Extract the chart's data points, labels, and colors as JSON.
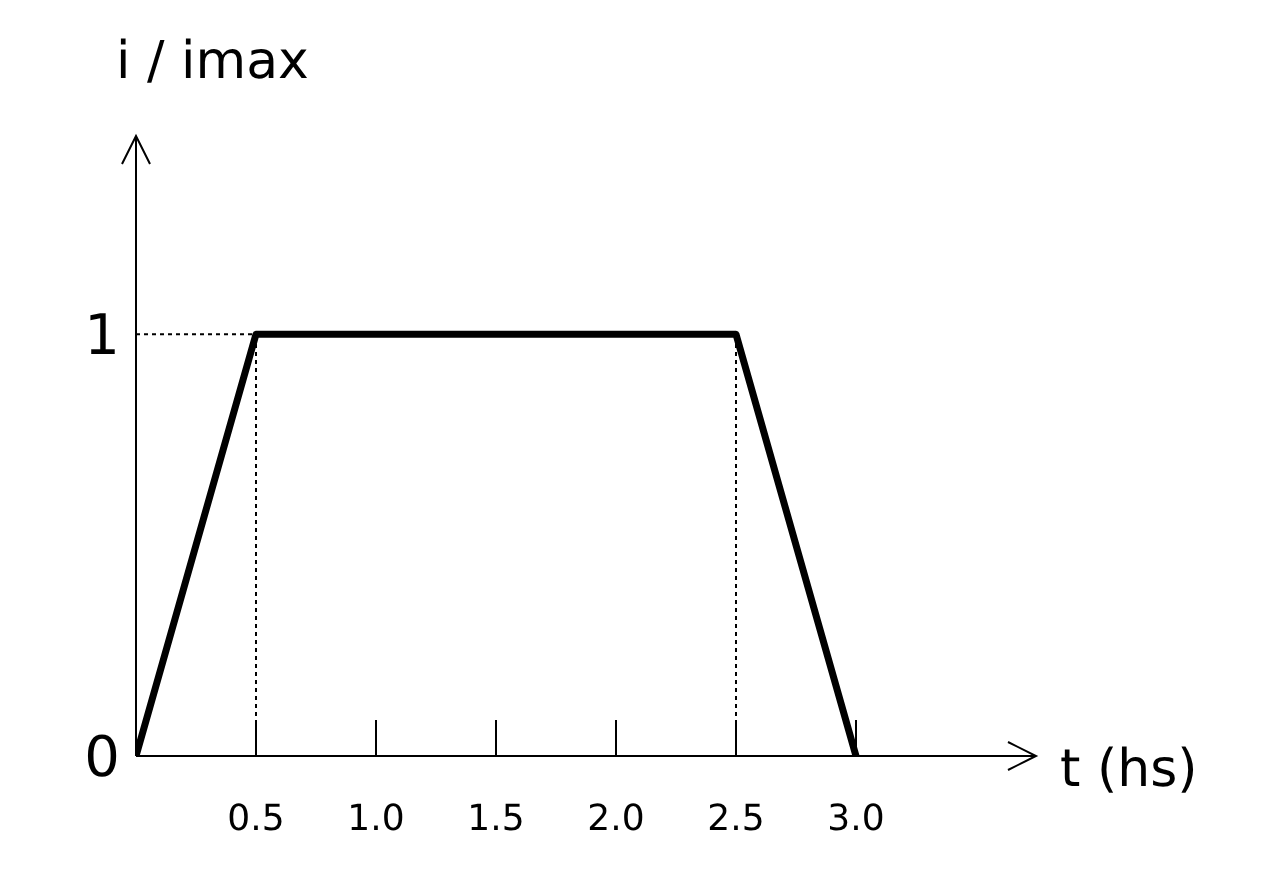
{
  "chart_data": {
    "type": "line",
    "xlabel": "t (hs)",
    "ylabel": "i / imax",
    "x": [
      0,
      0.5,
      2.5,
      3.0
    ],
    "series": [
      {
        "color": "#000000",
        "values": [
          0,
          1,
          1,
          0
        ]
      }
    ],
    "xlim": [
      0,
      3.75
    ],
    "ylim": [
      0,
      1.47
    ],
    "xticks": [
      0.5,
      {
        "value": 1,
        "label": "1.0"
      },
      1.5,
      {
        "value": 2,
        "label": "2.0"
      },
      2.5,
      {
        "value": 3,
        "label": "3.0"
      }
    ],
    "yticks": [
      0,
      1
    ],
    "ref_lines": [
      {
        "axis": "x",
        "value": 0.5,
        "line_style": "dotted",
        "color": "#000000"
      },
      {
        "axis": "x",
        "value": 2.5,
        "line_style": "dotted",
        "color": "#000000"
      },
      {
        "axis": "y",
        "value": 1,
        "line_style": "dotted",
        "color": "#000000"
      }
    ],
    "grid": false,
    "legend": false,
    "marker": "none",
    "line_style": "solid"
  }
}
